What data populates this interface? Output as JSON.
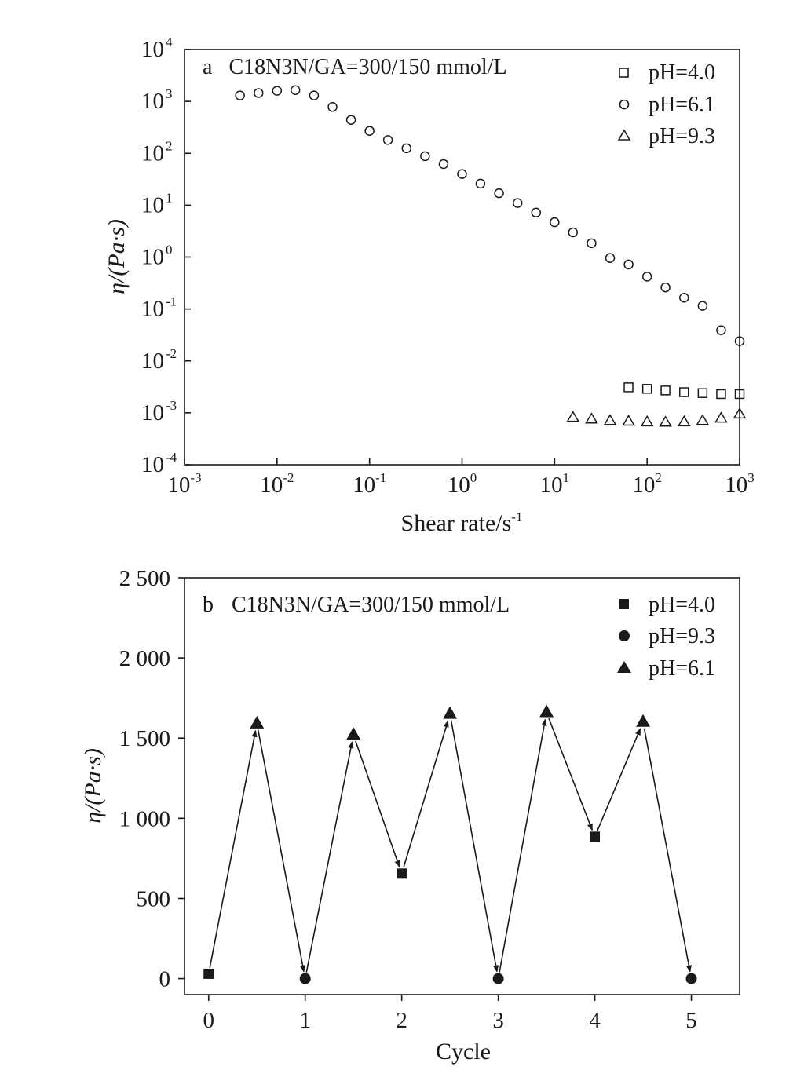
{
  "chart_data": [
    {
      "panel": "a",
      "type": "scatter",
      "annotation": "C18N3N/GA=300/150 mmol/L",
      "xlabel": "Shear rate/s",
      "xlabel_sup": "-1",
      "ylabel": "η/(Pa·s)",
      "xscale": "log",
      "yscale": "log",
      "xlim": [
        0.001,
        1000
      ],
      "ylim": [
        0.0001,
        10000
      ],
      "x_tick_labels": [
        {
          "base": "10",
          "exp": "-3"
        },
        {
          "base": "10",
          "exp": "-2"
        },
        {
          "base": "10",
          "exp": "-1"
        },
        {
          "base": "10",
          "exp": "0"
        },
        {
          "base": "10",
          "exp": "1"
        },
        {
          "base": "10",
          "exp": "2"
        },
        {
          "base": "10",
          "exp": "3"
        }
      ],
      "y_tick_labels": [
        {
          "base": "10",
          "exp": "-4"
        },
        {
          "base": "10",
          "exp": "-3"
        },
        {
          "base": "10",
          "exp": "-2"
        },
        {
          "base": "10",
          "exp": "-1"
        },
        {
          "base": "10",
          "exp": "0"
        },
        {
          "base": "10",
          "exp": "1"
        },
        {
          "base": "10",
          "exp": "2"
        },
        {
          "base": "10",
          "exp": "3"
        },
        {
          "base": "10",
          "exp": "4"
        }
      ],
      "grid": false,
      "legend_position": "top-right",
      "series": [
        {
          "name": "pH=4.0",
          "marker": "open-square",
          "points": [
            [
              63,
              0.0031
            ],
            [
              100,
              0.0029
            ],
            [
              158,
              0.0027
            ],
            [
              251,
              0.0025
            ],
            [
              398,
              0.0024
            ],
            [
              631,
              0.0023
            ],
            [
              1000,
              0.0023
            ]
          ]
        },
        {
          "name": "pH=6.1",
          "marker": "open-circle",
          "points": [
            [
              0.00398,
              1300
            ],
            [
              0.00631,
              1450
            ],
            [
              0.01,
              1600
            ],
            [
              0.0158,
              1650
            ],
            [
              0.0251,
              1300
            ],
            [
              0.0398,
              780
            ],
            [
              0.0631,
              440
            ],
            [
              0.1,
              270
            ],
            [
              0.158,
              180
            ],
            [
              0.251,
              125
            ],
            [
              0.398,
              88
            ],
            [
              0.631,
              62
            ],
            [
              1,
              40
            ],
            [
              1.58,
              26
            ],
            [
              2.51,
              17
            ],
            [
              3.98,
              11
            ],
            [
              6.31,
              7.2
            ],
            [
              10,
              4.7
            ],
            [
              15.8,
              3
            ],
            [
              25.1,
              1.85
            ],
            [
              39.8,
              0.96
            ],
            [
              63.1,
              0.72
            ],
            [
              100,
              0.42
            ],
            [
              158,
              0.26
            ],
            [
              251,
              0.165
            ],
            [
              398,
              0.115
            ],
            [
              631,
              0.039
            ],
            [
              1000,
              0.024
            ]
          ]
        },
        {
          "name": "pH=9.3",
          "marker": "open-triangle",
          "points": [
            [
              15.8,
              0.00082
            ],
            [
              25.1,
              0.00076
            ],
            [
              39.8,
              0.00071
            ],
            [
              63.1,
              0.00069
            ],
            [
              100,
              0.00067
            ],
            [
              158,
              0.00066
            ],
            [
              251,
              0.00067
            ],
            [
              398,
              0.00071
            ],
            [
              631,
              0.00079
            ],
            [
              1000,
              0.00095
            ]
          ]
        }
      ]
    },
    {
      "panel": "b",
      "type": "line",
      "annotation": "C18N3N/GA=300/150 mmol/L",
      "xlabel": "Cycle",
      "ylabel": "η/(Pa·s)",
      "xlim": [
        -0.25,
        5.5
      ],
      "ylim": [
        -100,
        2500
      ],
      "x_ticks": [
        0,
        1,
        2,
        3,
        4,
        5
      ],
      "x_tick_labels": [
        "0",
        "1",
        "2",
        "3",
        "4",
        "5"
      ],
      "y_ticks": [
        0,
        500,
        1000,
        1500,
        2000,
        2500
      ],
      "y_tick_labels": [
        "0",
        "500",
        "1 000",
        "1 500",
        "2 000",
        "2 500"
      ],
      "grid": false,
      "legend_position": "top-right",
      "legend": [
        {
          "name": "pH=4.0",
          "marker": "filled-square"
        },
        {
          "name": "pH=9.3",
          "marker": "filled-circle"
        },
        {
          "name": "pH=6.1",
          "marker": "filled-triangle"
        }
      ],
      "points": [
        {
          "x": 0,
          "y": 30,
          "series": "pH=4.0"
        },
        {
          "x": 0.5,
          "y": 1590,
          "series": "pH=6.1"
        },
        {
          "x": 1,
          "y": 0,
          "series": "pH=9.3"
        },
        {
          "x": 1.5,
          "y": 1520,
          "series": "pH=6.1"
        },
        {
          "x": 2,
          "y": 655,
          "series": "pH=4.0"
        },
        {
          "x": 2.5,
          "y": 1650,
          "series": "pH=6.1"
        },
        {
          "x": 3,
          "y": 0,
          "series": "pH=9.3"
        },
        {
          "x": 3.5,
          "y": 1660,
          "series": "pH=6.1"
        },
        {
          "x": 4,
          "y": 885,
          "series": "pH=4.0"
        },
        {
          "x": 4.5,
          "y": 1600,
          "series": "pH=6.1"
        },
        {
          "x": 5,
          "y": 0,
          "series": "pH=9.3"
        }
      ],
      "connected_with_arrows": true
    }
  ]
}
